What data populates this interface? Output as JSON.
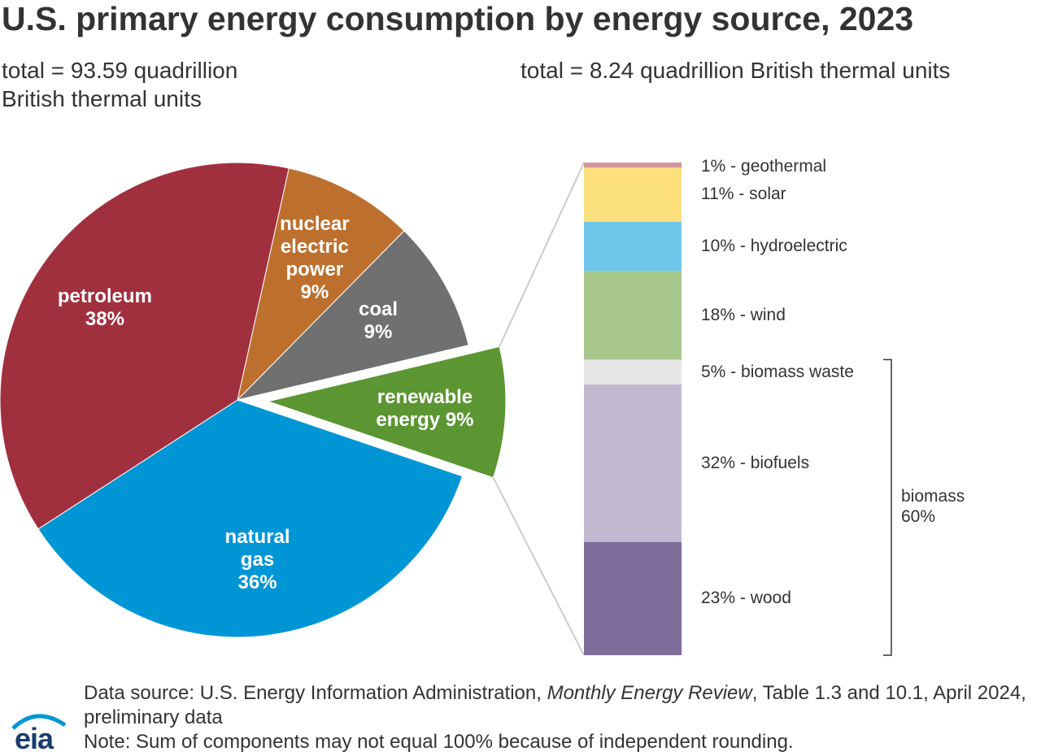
{
  "title": "U.S. primary energy consumption by energy source, 2023",
  "source": [
    "Data source: U.S. Energy Information Administration, ",
    "Monthly Energy Review",
    ", Table 1.3 and 10.1, April 2024, preliminary data"
  ],
  "note": "Note: Sum of components may not equal 100% because of independent rounding.",
  "logo": "eia",
  "chart_data": [
    {
      "type": "pie",
      "subtitle": "total = 93.59 quadrillion British thermal units",
      "categories": [
        "nuclear electric power",
        "coal",
        "renewable energy",
        "natural gas",
        "petroleum"
      ],
      "values": [
        9,
        9,
        9,
        36,
        38
      ],
      "value_labels": [
        "9%",
        "9%",
        "9%",
        "36%",
        "38%"
      ],
      "colors": [
        "#bd702d",
        "#707070",
        "#5b9632",
        "#0096d6",
        "#a1303f"
      ],
      "explode": [
        false,
        false,
        true,
        false,
        false
      ]
    },
    {
      "type": "stacked-bar",
      "subtitle": "total = 8.24 quadrillion British thermal units",
      "categories": [
        "23% - wood",
        "32% - biofuels",
        "5% - biomass waste",
        "18% - wind",
        "10% - hydroelectric",
        "11% - solar",
        "1% - geothermal"
      ],
      "values": [
        23,
        32,
        5,
        18,
        10,
        11,
        1
      ],
      "colors": [
        "#7d6c9a",
        "#c1b9d0",
        "#e6e6e6",
        "#a6c68c",
        "#6ec6e8",
        "#fce07e",
        "#d4949a"
      ],
      "annotation": {
        "text": "biomass",
        "value": 60,
        "value_label": "60%"
      }
    }
  ]
}
